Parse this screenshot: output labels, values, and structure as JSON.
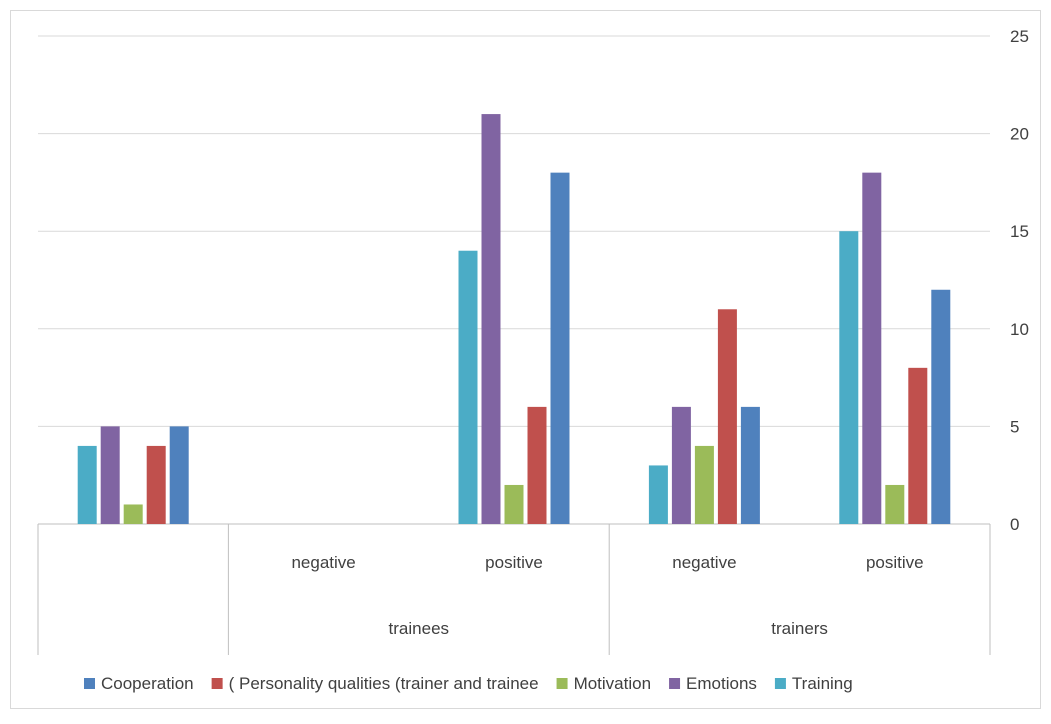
{
  "chart_data": {
    "type": "bar",
    "groups": [
      {
        "label": "",
        "parent": ""
      },
      {
        "label": "negative",
        "parent": "trainees"
      },
      {
        "label": "positive",
        "parent": "trainees"
      },
      {
        "label": "negative",
        "parent": "trainers"
      },
      {
        "label": "positive",
        "parent": "trainers"
      }
    ],
    "parents": [
      {
        "label": "",
        "span": [
          0,
          0
        ]
      },
      {
        "label": "trainees",
        "span": [
          1,
          2
        ]
      },
      {
        "label": "trainers",
        "span": [
          3,
          4
        ]
      }
    ],
    "series": [
      {
        "name": "Training",
        "color": "#4bacc6",
        "values": [
          4,
          null,
          14,
          3,
          15
        ]
      },
      {
        "name": "Emotions",
        "color": "#8064a2",
        "values": [
          5,
          null,
          21,
          6,
          18
        ]
      },
      {
        "name": "Motivation",
        "color": "#9bbb59",
        "values": [
          1,
          null,
          2,
          4,
          2
        ]
      },
      {
        "name": "( Personality qualities (trainer and trainee",
        "color": "#c0504d",
        "values": [
          4,
          null,
          6,
          11,
          8
        ]
      },
      {
        "name": "Cooperation",
        "color": "#4f81bd",
        "values": [
          5,
          null,
          18,
          6,
          12
        ]
      }
    ],
    "legend_order": [
      "Cooperation",
      "( Personality qualities (trainer and trainee",
      "Motivation",
      "Emotions",
      "Training"
    ],
    "y_axis": {
      "min": 0,
      "max": 25,
      "ticks": [
        "0",
        "5",
        "10",
        "15",
        "20",
        "25"
      ],
      "position": "right"
    },
    "grid": true,
    "legend_position": "bottom"
  }
}
